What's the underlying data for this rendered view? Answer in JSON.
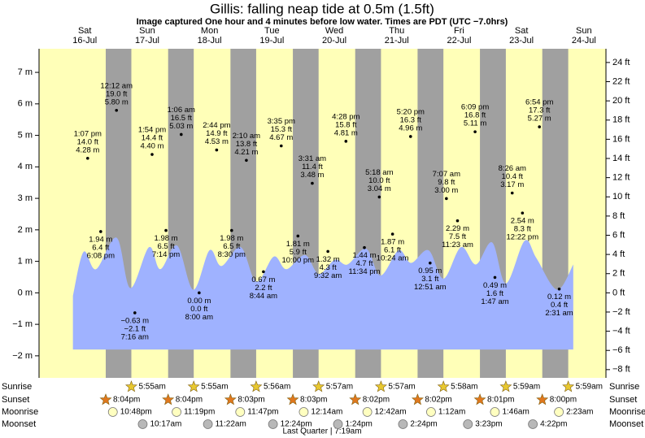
{
  "chart_data": {
    "type": "tide",
    "title": "Gillis: falling  neap tide at 0.5m (1.5ft)",
    "subtitle": "Image captured One hour and 4 minutes before low water. Times are PDT (UTC −7.0hrs)",
    "xlim": [
      -0.233,
      8.854
    ],
    "ylim": [
      -2.7,
      7.75
    ],
    "yticks": [
      {
        "value": 7,
        "label": "7 m"
      },
      {
        "value": 6,
        "label": "6 m"
      },
      {
        "value": 5,
        "label": "5 m"
      },
      {
        "value": 4,
        "label": "4 m"
      },
      {
        "value": 3,
        "label": "3 m"
      },
      {
        "value": 2,
        "label": "2 m"
      },
      {
        "value": 1,
        "label": "1 m"
      },
      {
        "value": 0,
        "label": "0 m"
      },
      {
        "value": -1,
        "label": "−1 m"
      },
      {
        "value": -2,
        "label": "−2 m"
      }
    ],
    "y2lim": [
      -8.86,
      25.43
    ],
    "y2ticks": [
      {
        "value": 24,
        "label": "24 ft"
      },
      {
        "value": 22,
        "label": "22 ft"
      },
      {
        "value": 20,
        "label": "20 ft"
      },
      {
        "value": 18,
        "label": "18 ft"
      },
      {
        "value": 16,
        "label": "16 ft"
      },
      {
        "value": 14,
        "label": "14 ft"
      },
      {
        "value": 12,
        "label": "12 ft"
      },
      {
        "value": 10,
        "label": "10 ft"
      },
      {
        "value": 8,
        "label": "8 ft"
      },
      {
        "value": 6,
        "label": "6 ft"
      },
      {
        "value": 4,
        "label": "4 ft"
      },
      {
        "value": 2,
        "label": "2 ft"
      },
      {
        "value": 0,
        "label": "0 ft"
      },
      {
        "value": -2,
        "label": "−2 ft"
      },
      {
        "value": -4,
        "label": "−4 ft"
      },
      {
        "value": -6,
        "label": "−6 ft"
      },
      {
        "value": -8,
        "label": "−8 ft"
      }
    ],
    "colors": {
      "day": "#ffffb8",
      "night": "#a0a0a0",
      "header": "#e00000"
    },
    "tide_curve": {
      "color": "#9fb2ff",
      "base": -1.8,
      "x": [
        0.31,
        0.48,
        0.68,
        1.01,
        1.23,
        1.53,
        1.71,
        1.98,
        2.24,
        2.5,
        2.69,
        3.0,
        3.25,
        3.53,
        3.73,
        4.03,
        4.25,
        4.51,
        4.71,
        5.01,
        5.24,
        5.53,
        5.73,
        6.01,
        6.25,
        6.53,
        6.77,
        7.03,
        7.25,
        7.55,
        7.74,
        8.07,
        8.33
      ],
      "values": [
        -0.1,
        1.3,
        0.75,
        1.75,
        0.15,
        1.45,
        0.75,
        1.5,
        0.1,
        1.35,
        0.85,
        1.45,
        0.35,
        1.15,
        0.75,
        1.2,
        0.6,
        1.05,
        0.9,
        1.4,
        0.55,
        1.35,
        0.95,
        1.35,
        0.45,
        1.45,
        0.9,
        1.6,
        0.3,
        1.65,
        1.1,
        0.1,
        0.9
      ]
    },
    "row_labels": {
      "sunrise": "Sunrise",
      "sunset": "Sunset",
      "moonrise": "Moonrise",
      "moonset": "Moonset"
    },
    "moon_phase": "Last Quarter | 7:19am",
    "days": [
      {
        "weekday": "Sat",
        "date": "16-Jul",
        "sunset": "8:04pm",
        "moonrise": "10:48pm",
        "tides": [
          {
            "time": "1:07 pm",
            "height_ft": {
              "value": 14.0,
              "label": "14.0 ft"
            },
            "height_m": {
              "value": 4.28,
              "label": "4.28 m"
            }
          },
          {
            "time": "6:08 pm",
            "height_ft": {
              "value": 6.4,
              "label": "6.4 ft"
            },
            "height_m": {
              "value": 1.94,
              "label": "1.94 m"
            }
          }
        ]
      },
      {
        "weekday": "Sun",
        "date": "17-Jul",
        "sunrise": "5:55am",
        "sunset": "8:04pm",
        "moonrise": "11:19pm",
        "moonset": "10:17am",
        "tides": [
          {
            "time": "12:12 am",
            "height_ft": {
              "value": 19.0,
              "label": "19.0 ft"
            },
            "height_m": {
              "value": 5.8,
              "label": "5.80 m"
            }
          },
          {
            "time": "7:16 am",
            "height_ft": {
              "value": -2.1,
              "label": "−2.1 ft"
            },
            "height_m": {
              "value": -0.63,
              "label": "−0.63 m"
            }
          },
          {
            "time": "1:54 pm",
            "height_ft": {
              "value": 14.4,
              "label": "14.4 ft"
            },
            "height_m": {
              "value": 4.4,
              "label": "4.40 m"
            }
          },
          {
            "time": "7:14 pm",
            "height_ft": {
              "value": 6.5,
              "label": "6.5 ft"
            },
            "height_m": {
              "value": 1.98,
              "label": "1.98 m"
            }
          }
        ]
      },
      {
        "weekday": "Mon",
        "date": "18-Jul",
        "sunrise": "5:55am",
        "sunset": "8:03pm",
        "moonrise": "11:47pm",
        "moonset": "11:22am",
        "tides": [
          {
            "time": "1:06 am",
            "height_ft": {
              "value": 16.5,
              "label": "16.5 ft"
            },
            "height_m": {
              "value": 5.03,
              "label": "5.03 m"
            }
          },
          {
            "time": "8:00 am",
            "height_ft": {
              "value": 0.0,
              "label": "0.0 ft"
            },
            "height_m": {
              "value": 0.0,
              "label": "0.00 m"
            }
          },
          {
            "time": "2:44 pm",
            "height_ft": {
              "value": 14.9,
              "label": "14.9 ft"
            },
            "height_m": {
              "value": 4.53,
              "label": "4.53 m"
            }
          },
          {
            "time": "8:30 pm",
            "height_ft": {
              "value": 6.5,
              "label": "6.5 ft"
            },
            "height_m": {
              "value": 1.98,
              "label": "1.98 m"
            }
          }
        ]
      },
      {
        "weekday": "Tue",
        "date": "19-Jul",
        "sunrise": "5:56am",
        "sunset": "8:03pm",
        "moonset": "12:24pm",
        "tides": [
          {
            "time": "2:10 am",
            "height_ft": {
              "value": 13.8,
              "label": "13.8 ft"
            },
            "height_m": {
              "value": 4.21,
              "label": "4.21 m"
            }
          },
          {
            "time": "8:44 am",
            "height_ft": {
              "value": 2.2,
              "label": "2.2 ft"
            },
            "height_m": {
              "value": 0.67,
              "label": "0.67 m"
            }
          },
          {
            "time": "3:35 pm",
            "height_ft": {
              "value": 15.3,
              "label": "15.3 ft"
            },
            "height_m": {
              "value": 4.67,
              "label": "4.67 m"
            }
          },
          {
            "time": "10:00 pm",
            "height_ft": {
              "value": 5.9,
              "label": "5.9 ft"
            },
            "height_m": {
              "value": 1.81,
              "label": "1.81 m"
            }
          }
        ]
      },
      {
        "weekday": "Wed",
        "date": "20-Jul",
        "sunrise": "5:57am",
        "sunset": "8:02pm",
        "moonrise": "12:14am",
        "moonset": "1:24pm",
        "tides": [
          {
            "time": "3:31 am",
            "height_ft": {
              "value": 11.4,
              "label": "11.4 ft"
            },
            "height_m": {
              "value": 3.48,
              "label": "3.48 m"
            }
          },
          {
            "time": "9:32 am",
            "height_ft": {
              "value": 4.3,
              "label": "4.3 ft"
            },
            "height_m": {
              "value": 1.32,
              "label": "1.32 m"
            }
          },
          {
            "time": "4:28 pm",
            "height_ft": {
              "value": 15.8,
              "label": "15.8 ft"
            },
            "height_m": {
              "value": 4.81,
              "label": "4.81 m"
            }
          },
          {
            "time": "11:34 pm",
            "height_ft": {
              "value": 4.7,
              "label": "4.7 ft"
            },
            "height_m": {
              "value": 1.44,
              "label": "1.44 m"
            }
          }
        ]
      },
      {
        "weekday": "Thu",
        "date": "21-Jul",
        "sunrise": "5:57am",
        "sunset": "8:02pm",
        "moonrise": "12:42am",
        "moonset": "2:24pm",
        "tides": [
          {
            "time": "5:18 am",
            "height_ft": {
              "value": 10.0,
              "label": "10.0 ft"
            },
            "height_m": {
              "value": 3.04,
              "label": "3.04 m"
            }
          },
          {
            "time": "10:24 am",
            "height_ft": {
              "value": 6.1,
              "label": "6.1 ft"
            },
            "height_m": {
              "value": 1.87,
              "label": "1.87 m"
            }
          },
          {
            "time": "5:20 pm",
            "height_ft": {
              "value": 16.3,
              "label": "16.3 ft"
            },
            "height_m": {
              "value": 4.96,
              "label": "4.96 m"
            }
          }
        ]
      },
      {
        "weekday": "Fri",
        "date": "22-Jul",
        "sunrise": "5:58am",
        "sunset": "8:01pm",
        "moonrise": "1:12am",
        "moonset": "3:23pm",
        "tides": [
          {
            "time": "12:51 am",
            "height_ft": {
              "value": 3.1,
              "label": "3.1 ft"
            },
            "height_m": {
              "value": 0.95,
              "label": "0.95 m"
            }
          },
          {
            "time": "7:07 am",
            "height_ft": {
              "value": 9.8,
              "label": "9.8 ft"
            },
            "height_m": {
              "value": 3.0,
              "label": "3.00 m"
            }
          },
          {
            "time": "11:23 am",
            "height_ft": {
              "value": 7.5,
              "label": "7.5 ft"
            },
            "height_m": {
              "value": 2.29,
              "label": "2.29 m"
            }
          },
          {
            "time": "6:09 pm",
            "height_ft": {
              "value": 16.8,
              "label": "16.8 ft"
            },
            "height_m": {
              "value": 5.11,
              "label": "5.11 m"
            }
          }
        ]
      },
      {
        "weekday": "Sat",
        "date": "23-Jul",
        "sunrise": "5:59am",
        "sunset": "8:00pm",
        "moonrise": "1:46am",
        "moonset": "4:22pm",
        "tides": [
          {
            "time": "1:47 am",
            "height_ft": {
              "value": 1.6,
              "label": "1.6 ft"
            },
            "height_m": {
              "value": 0.49,
              "label": "0.49 m"
            }
          },
          {
            "time": "8:26 am",
            "height_ft": {
              "value": 10.4,
              "label": "10.4 ft"
            },
            "height_m": {
              "value": 3.17,
              "label": "3.17 m"
            }
          },
          {
            "time": "12:22 pm",
            "height_ft": {
              "value": 8.3,
              "label": "8.3 ft"
            },
            "height_m": {
              "value": 2.54,
              "label": "2.54 m"
            }
          },
          {
            "time": "6:54 pm",
            "height_ft": {
              "value": 17.3,
              "label": "17.3 ft"
            },
            "height_m": {
              "value": 5.27,
              "label": "5.27 m"
            }
          }
        ]
      },
      {
        "weekday": "Sun",
        "date": "24-Jul",
        "sunrise": "5:59am",
        "moonrise": "2:23am",
        "tides": [
          {
            "time": "2:31 am",
            "height_ft": {
              "value": 0.4,
              "label": "0.4 ft"
            },
            "height_m": {
              "value": 0.12,
              "label": "0.12 m"
            }
          }
        ]
      }
    ]
  }
}
